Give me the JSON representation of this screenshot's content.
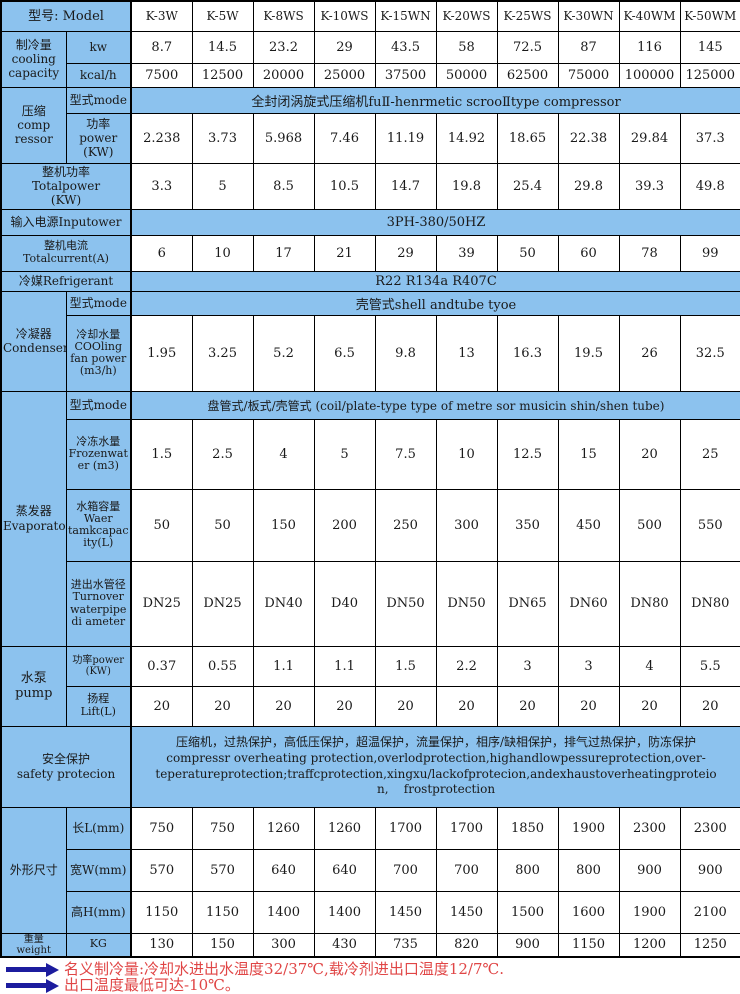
{
  "colors": {
    "cell_blue": "#8cc2ee",
    "note_red": "#e04646",
    "arrow_navy": "#1c1c9e",
    "border": "#000000"
  },
  "header": {
    "label": "型号: Model",
    "models": [
      "K-3W",
      "K-5W",
      "K-8WS",
      "K-10WS",
      "K-15WN",
      "K-20WS",
      "K-25WS",
      "K-30WN",
      "K-40WM",
      "K-50WM"
    ]
  },
  "cooling_capacity": {
    "group": "制冷量\ncooling\ncapacity",
    "kw_label": "kw",
    "kw": [
      "8.7",
      "14.5",
      "23.2",
      "29",
      "43.5",
      "58",
      "72.5",
      "87",
      "116",
      "145"
    ],
    "kcal_label": "kcal/h",
    "kcal": [
      "7500",
      "12500",
      "20000",
      "25000",
      "37500",
      "50000",
      "62500",
      "75000",
      "100000",
      "125000"
    ]
  },
  "compressor": {
    "group": "压缩\ncomp\nressor",
    "mode_label": "型式mode",
    "mode": "全封闭涡旋式压缩机fuⅡ-henrmetic scrooⅡtype compressor",
    "power_label": "功率\npower\n(KW)",
    "power": [
      "2.238",
      "3.73",
      "5.968",
      "7.46",
      "11.19",
      "14.92",
      "18.65",
      "22.38",
      "29.84",
      "37.3"
    ]
  },
  "total_power": {
    "label": "整机功率\nTotalpower\n(KW)",
    "values": [
      "3.3",
      "5",
      "8.5",
      "10.5",
      "14.7",
      "19.8",
      "25.4",
      "29.8",
      "39.3",
      "49.8"
    ]
  },
  "input_power": {
    "label": "输入电源Inputower",
    "value": "3PH-380/50HZ"
  },
  "total_current": {
    "label": "整机电流\nTotalcurrent(A)",
    "values": [
      "6",
      "10",
      "17",
      "21",
      "29",
      "39",
      "50",
      "60",
      "78",
      "99"
    ]
  },
  "refrigerant": {
    "label": "冷媒Refrigerant",
    "value": "R22 R134a R407C"
  },
  "condenser": {
    "group": "冷凝器\nCondenser",
    "mode_label": "型式mode",
    "mode": "壳管式shell andtube tyoe",
    "water_label": "冷却水量\nCOOling\nfan power\n(m3/h)",
    "water": [
      "1.95",
      "3.25",
      "5.2",
      "6.5",
      "9.8",
      "13",
      "16.3",
      "19.5",
      "26",
      "32.5"
    ]
  },
  "evaporator": {
    "group": "蒸发器\nEvaporator",
    "mode_label": "型式mode",
    "mode": "盘管式/板式/壳管式 (coil/plate-type type of metre sor musicin shin/shen tube)",
    "frozen_label": "冷冻水量\nFrozenwat\ner (m3)",
    "frozen": [
      "1.5",
      "2.5",
      "4",
      "5",
      "7.5",
      "10",
      "12.5",
      "15",
      "20",
      "25"
    ],
    "tank_label": "水箱容量\nWaer\ntamkcapac\nity(L)",
    "tank": [
      "50",
      "50",
      "150",
      "200",
      "250",
      "300",
      "350",
      "450",
      "500",
      "550"
    ],
    "pipe_label": "进出水管径\nTurnover\nwaterpipe\ndi ameter",
    "pipe": [
      "DN25",
      "DN25",
      "DN40",
      "D40",
      "DN50",
      "DN50",
      "DN65",
      "DN60",
      "DN80",
      "DN80"
    ]
  },
  "pump": {
    "group": "水泵\npump",
    "power_label": "功率power\n(KW)",
    "power": [
      "0.37",
      "0.55",
      "1.1",
      "1.1",
      "1.5",
      "2.2",
      "3",
      "3",
      "4",
      "5.5"
    ],
    "lift_label": "扬程\nLift(L)",
    "lift": [
      "20",
      "20",
      "20",
      "20",
      "20",
      "20",
      "20",
      "20",
      "20",
      "20"
    ]
  },
  "safety": {
    "label": "安全保护\nsafety protecion",
    "text": "压缩机，过热保护，高低压保护，超温保护，流量保护，相序/缺相保护，排气过热保护，防冻保护\ncompressr overheating protection,overlodprotection,highandlowpessureprotection,over-\nteperatureprotection;traffcprotection,xingxu/lackofprotecion,andexhaustoverheatingproteio\nn,    frostprotection"
  },
  "dimensions": {
    "group": "外形尺寸",
    "length_label": "长L(mm)",
    "length": [
      "750",
      "750",
      "1260",
      "1260",
      "1700",
      "1700",
      "1850",
      "1900",
      "2300",
      "2300"
    ],
    "width_label": "宽W(mm)",
    "width": [
      "570",
      "570",
      "640",
      "640",
      "700",
      "700",
      "800",
      "800",
      "900",
      "900"
    ],
    "height_label": "高H(mm)",
    "height": [
      "1150",
      "1150",
      "1400",
      "1400",
      "1450",
      "1450",
      "1500",
      "1600",
      "1900",
      "2100"
    ]
  },
  "weight": {
    "group": "重量\nweight",
    "unit_label": "KG",
    "values": [
      "130",
      "150",
      "300",
      "430",
      "735",
      "820",
      "900",
      "1150",
      "1200",
      "1250"
    ]
  },
  "notes": [
    {
      "text": "名义制冷量:冷却水进出水温度32/37℃,载冷剂进出口温度12/7℃."
    },
    {
      "text": "出口温度最低可达-10℃。"
    }
  ]
}
